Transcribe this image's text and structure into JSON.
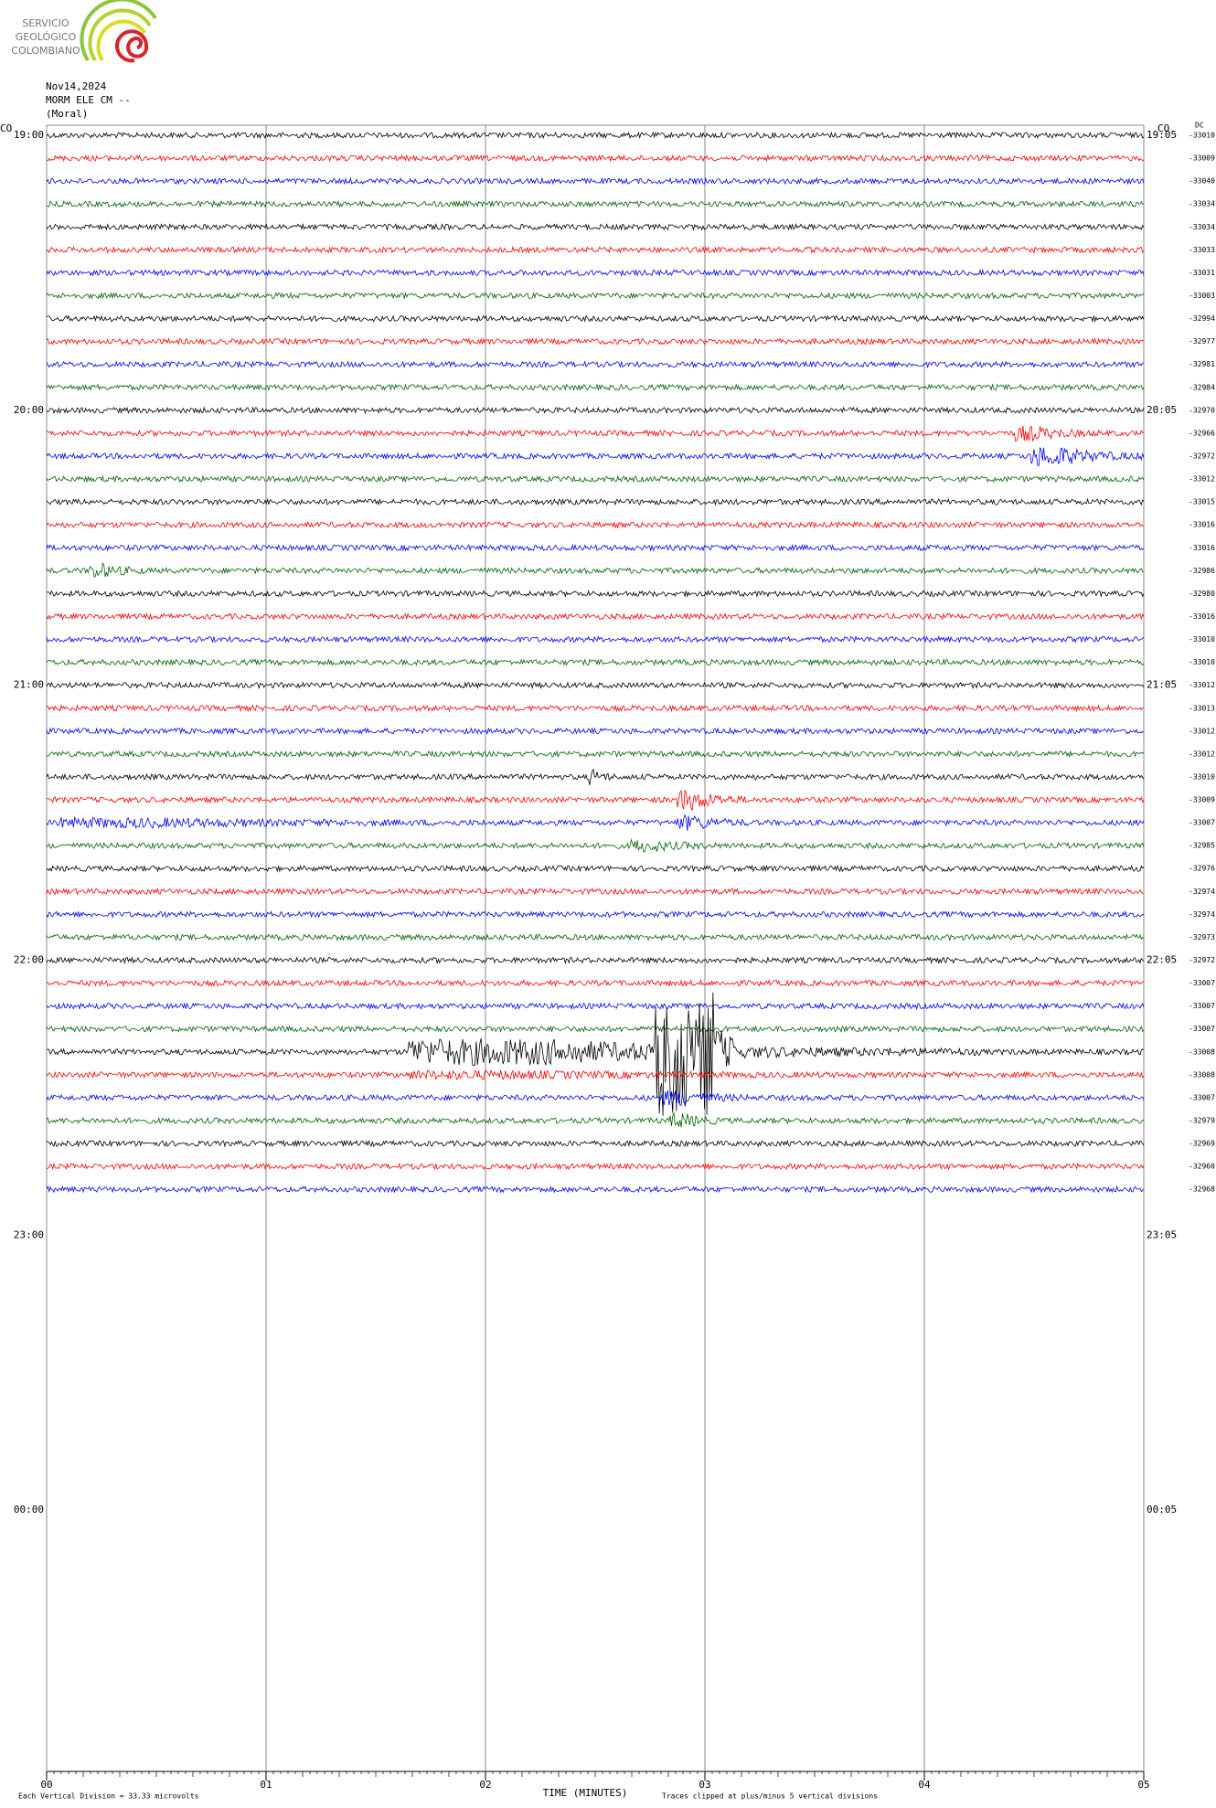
{
  "chart_data": {
    "type": "helicorder",
    "logo": [
      "SERVICIO",
      "GEOLÓGICO",
      "COLOMBIANO"
    ],
    "date": "Nov14,2024",
    "station": "MORM ELE CM --",
    "site": "(Moral)",
    "left_corner": "CO",
    "right_corner": "CO",
    "dc_header": "DC",
    "left_times": [
      "19:00",
      "20:00",
      "21:00",
      "22:00",
      "23:00",
      "00:00"
    ],
    "right_times": [
      "19:05",
      "20:05",
      "21:05",
      "22:05",
      "23:05",
      "00:05"
    ],
    "dc_offsets": [
      -33010,
      -33009,
      -33040,
      -33034,
      -33034,
      -33033,
      -33031,
      -33003,
      -32994,
      -32977,
      -32981,
      -32984,
      -32970,
      -32966,
      -32972,
      -33012,
      -33015,
      -33016,
      -33016,
      -32986,
      -32980,
      -33016,
      -33010,
      -33010,
      -33012,
      -33013,
      -33012,
      -33012,
      -33010,
      -33009,
      -33007,
      -32985,
      -32976,
      -32974,
      -32974,
      -32973,
      -32972,
      -33007,
      -33007,
      -33007,
      -33008,
      -33008,
      -33007,
      -32979,
      -32969,
      -32960,
      -32968
    ],
    "trace_colors": [
      "#000000",
      "#ff0000",
      "#0000ff",
      "#006400"
    ],
    "xlim": [
      0,
      5
    ],
    "xticks": [
      {
        "value": 0,
        "label": "00"
      },
      {
        "value": 1,
        "label": "01"
      },
      {
        "value": 2,
        "label": "02"
      },
      {
        "value": 3,
        "label": "03"
      },
      {
        "value": 4,
        "label": "04"
      },
      {
        "value": 5,
        "label": "05"
      }
    ],
    "xlabel": "TIME (MINUTES)",
    "scale_note": "Each Vertical Division =   33.33 microvolts",
    "clip_note": "Traces clipped at plus/minus 5 vertical divisions"
  }
}
